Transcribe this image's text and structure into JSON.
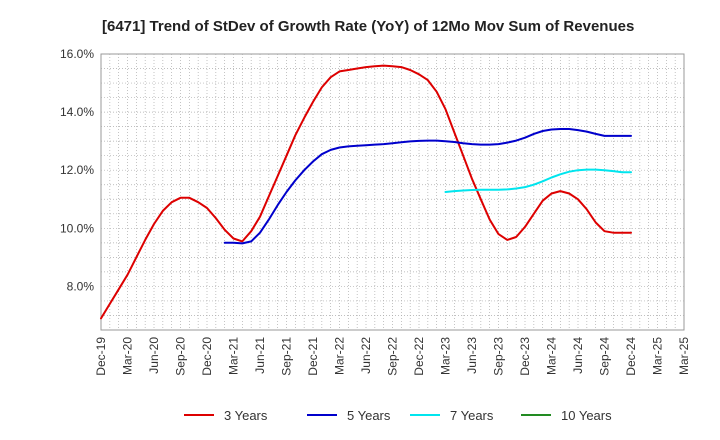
{
  "chart_data": {
    "type": "line",
    "title": "[6471]  Trend of StDev of Growth Rate (YoY) of 12Mo Mov Sum of Revenues",
    "xlabel": "",
    "ylabel": "",
    "ylim": [
      6.5,
      16.0
    ],
    "y_ticks": [
      8.0,
      10.0,
      12.0,
      14.0,
      16.0
    ],
    "y_tick_labels": [
      "8.0%",
      "10.0%",
      "12.0%",
      "14.0%",
      "16.0%"
    ],
    "x_range_months": [
      0,
      66
    ],
    "x_ticks": [
      {
        "label": "Dec-19",
        "m": 0
      },
      {
        "label": "Mar-20",
        "m": 3
      },
      {
        "label": "Jun-20",
        "m": 6
      },
      {
        "label": "Sep-20",
        "m": 9
      },
      {
        "label": "Dec-20",
        "m": 12
      },
      {
        "label": "Mar-21",
        "m": 15
      },
      {
        "label": "Jun-21",
        "m": 18
      },
      {
        "label": "Sep-21",
        "m": 21
      },
      {
        "label": "Dec-21",
        "m": 24
      },
      {
        "label": "Mar-22",
        "m": 27
      },
      {
        "label": "Jun-22",
        "m": 30
      },
      {
        "label": "Sep-22",
        "m": 33
      },
      {
        "label": "Dec-22",
        "m": 36
      },
      {
        "label": "Mar-23",
        "m": 39
      },
      {
        "label": "Jun-23",
        "m": 42
      },
      {
        "label": "Sep-23",
        "m": 45
      },
      {
        "label": "Dec-23",
        "m": 48
      },
      {
        "label": "Mar-24",
        "m": 51
      },
      {
        "label": "Jun-24",
        "m": 54
      },
      {
        "label": "Sep-24",
        "m": 57
      },
      {
        "label": "Dec-24",
        "m": 60
      },
      {
        "label": "Mar-25",
        "m": 63
      },
      {
        "label": "Mar-25",
        "m": 66
      }
    ],
    "grid": true,
    "legend_position": "bottom",
    "series": [
      {
        "name": "3 Years",
        "color": "#dd0000",
        "x": [
          0,
          1,
          2,
          3,
          4,
          5,
          6,
          7,
          8,
          9,
          10,
          11,
          12,
          13,
          14,
          15,
          16,
          17,
          18,
          19,
          20,
          21,
          22,
          23,
          24,
          25,
          26,
          27,
          28,
          29,
          30,
          31,
          32,
          33,
          34,
          35,
          36,
          37,
          38,
          39,
          40,
          41,
          42,
          43,
          44,
          45,
          46,
          47,
          48,
          49,
          50,
          51,
          52,
          53,
          54,
          55,
          56,
          57,
          58,
          59,
          60
        ],
        "values": [
          6.9,
          7.4,
          7.9,
          8.4,
          9.0,
          9.6,
          10.15,
          10.6,
          10.9,
          11.05,
          11.05,
          10.9,
          10.7,
          10.35,
          9.95,
          9.65,
          9.55,
          9.9,
          10.4,
          11.1,
          11.8,
          12.5,
          13.2,
          13.8,
          14.35,
          14.85,
          15.2,
          15.4,
          15.45,
          15.5,
          15.55,
          15.58,
          15.6,
          15.58,
          15.55,
          15.45,
          15.3,
          15.1,
          14.7,
          14.1,
          13.3,
          12.5,
          11.7,
          11.0,
          10.3,
          9.8,
          9.6,
          9.7,
          10.05,
          10.5,
          10.95,
          11.2,
          11.28,
          11.2,
          11.0,
          10.65,
          10.2,
          9.9,
          9.85,
          9.85,
          9.85
        ]
      },
      {
        "name": "5 Years",
        "color": "#0000cc",
        "x": [
          14,
          15,
          16,
          17,
          18,
          19,
          20,
          21,
          22,
          23,
          24,
          25,
          26,
          27,
          28,
          29,
          30,
          31,
          32,
          33,
          34,
          35,
          36,
          37,
          38,
          39,
          40,
          41,
          42,
          43,
          44,
          45,
          46,
          47,
          48,
          49,
          50,
          51,
          52,
          53,
          54,
          55,
          56,
          57,
          58,
          59,
          60
        ],
        "values": [
          9.5,
          9.5,
          9.48,
          9.55,
          9.85,
          10.3,
          10.8,
          11.25,
          11.65,
          12.0,
          12.3,
          12.55,
          12.7,
          12.78,
          12.82,
          12.84,
          12.86,
          12.88,
          12.9,
          12.93,
          12.96,
          12.99,
          13.01,
          13.02,
          13.02,
          13.0,
          12.97,
          12.93,
          12.9,
          12.88,
          12.88,
          12.9,
          12.95,
          13.02,
          13.12,
          13.25,
          13.35,
          13.4,
          13.42,
          13.42,
          13.38,
          13.33,
          13.25,
          13.18,
          13.18,
          13.18,
          13.18
        ]
      },
      {
        "name": "7 Years",
        "color": "#00e5ee",
        "x": [
          39,
          40,
          41,
          42,
          43,
          44,
          45,
          46,
          47,
          48,
          49,
          50,
          51,
          52,
          53,
          54,
          55,
          56,
          57,
          58,
          59,
          60
        ],
        "values": [
          11.25,
          11.28,
          11.3,
          11.32,
          11.33,
          11.33,
          11.33,
          11.34,
          11.37,
          11.42,
          11.5,
          11.62,
          11.75,
          11.86,
          11.95,
          12.0,
          12.02,
          12.02,
          12.0,
          11.97,
          11.93,
          11.93
        ]
      },
      {
        "name": "10 Years",
        "color": "#228b22",
        "x": [],
        "values": []
      }
    ]
  }
}
